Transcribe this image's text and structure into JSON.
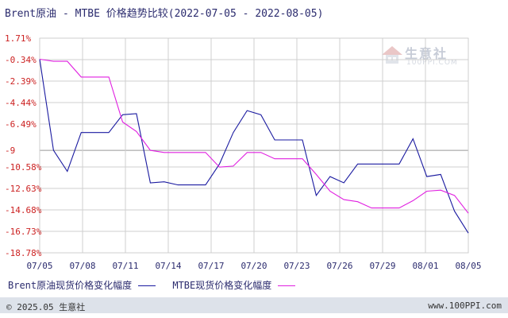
{
  "title": "Brent原油 - MTBE 价格趋势比较(2022-07-05 - 2022-08-05)",
  "watermark": {
    "name": "生意社",
    "url": "100PPI.COM"
  },
  "footer": {
    "left": "© 2025.05 生意社",
    "right": "www.100PPI.com"
  },
  "colors": {
    "brent": "#1a1aa0",
    "mtbe": "#e020e0",
    "grid": "#cfcfcf",
    "axis_text": "#cc2222",
    "x_text": "#2b2b6e",
    "baseline": "#999999"
  },
  "chart_data": {
    "type": "line",
    "title": "Brent原油 - MTBE 价格趋势比较(2022-07-05 - 2022-08-05)",
    "y_tick_labels": [
      "1.71%",
      "-0.34%",
      "-2.39%",
      "-4.44%",
      "-6.49%",
      "-9",
      "-10.58%",
      "-12.63%",
      "-14.68%",
      "-16.73%",
      "-18.78%"
    ],
    "y_ticks": [
      1.71,
      -0.34,
      -2.39,
      -4.44,
      -6.49,
      -9,
      -10.58,
      -12.63,
      -14.68,
      -16.73,
      -18.78
    ],
    "x_tick_labels": [
      "07/05",
      "07/08",
      "07/11",
      "07/14",
      "07/17",
      "07/20",
      "07/23",
      "07/26",
      "07/29",
      "08/01",
      "08/05"
    ],
    "ylim": [
      -18.78,
      1.71
    ],
    "baseline": -9,
    "grid": true,
    "legend_position": "bottom",
    "series": [
      {
        "name": "Brent原油现货价格变化幅度",
        "color": "#1a1aa0",
        "points": [
          [
            0,
            -0.3
          ],
          [
            1,
            -9.0
          ],
          [
            2,
            -11.0
          ],
          [
            3,
            -7.3
          ],
          [
            4,
            -7.3
          ],
          [
            5,
            -7.3
          ],
          [
            6,
            -5.6
          ],
          [
            7,
            -5.5
          ],
          [
            8,
            -12.1
          ],
          [
            9,
            -12.0
          ],
          [
            10,
            -12.3
          ],
          [
            11,
            -12.3
          ],
          [
            12,
            -12.3
          ],
          [
            13,
            -10.3
          ],
          [
            14,
            -7.3
          ],
          [
            15,
            -5.2
          ],
          [
            16,
            -5.6
          ],
          [
            17,
            -8.0
          ],
          [
            18,
            -8.0
          ],
          [
            19,
            -8.0
          ],
          [
            20,
            -13.3
          ],
          [
            21,
            -11.5
          ],
          [
            22,
            -12.1
          ],
          [
            23,
            -10.3
          ],
          [
            24,
            -10.3
          ],
          [
            25,
            -10.3
          ],
          [
            26,
            -10.3
          ],
          [
            27,
            -7.9
          ],
          [
            28,
            -11.5
          ],
          [
            29,
            -11.3
          ],
          [
            30,
            -14.8
          ],
          [
            31,
            -16.9
          ]
        ]
      },
      {
        "name": "MTBE现货价格变化幅度",
        "color": "#e020e0",
        "points": [
          [
            0,
            -0.3
          ],
          [
            1,
            -0.5
          ],
          [
            2,
            -0.5
          ],
          [
            3,
            -2.0
          ],
          [
            4,
            -2.0
          ],
          [
            5,
            -2.0
          ],
          [
            6,
            -6.3
          ],
          [
            7,
            -7.2
          ],
          [
            8,
            -9.0
          ],
          [
            9,
            -9.2
          ],
          [
            10,
            -9.2
          ],
          [
            11,
            -9.2
          ],
          [
            12,
            -9.2
          ],
          [
            13,
            -10.6
          ],
          [
            14,
            -10.5
          ],
          [
            15,
            -9.2
          ],
          [
            16,
            -9.2
          ],
          [
            17,
            -9.8
          ],
          [
            18,
            -9.8
          ],
          [
            19,
            -9.8
          ],
          [
            20,
            -11.3
          ],
          [
            21,
            -12.9
          ],
          [
            22,
            -13.7
          ],
          [
            23,
            -13.9
          ],
          [
            24,
            -14.5
          ],
          [
            25,
            -14.5
          ],
          [
            26,
            -14.5
          ],
          [
            27,
            -13.8
          ],
          [
            28,
            -12.9
          ],
          [
            29,
            -12.8
          ],
          [
            30,
            -13.3
          ],
          [
            31,
            -15.0
          ]
        ]
      }
    ]
  }
}
